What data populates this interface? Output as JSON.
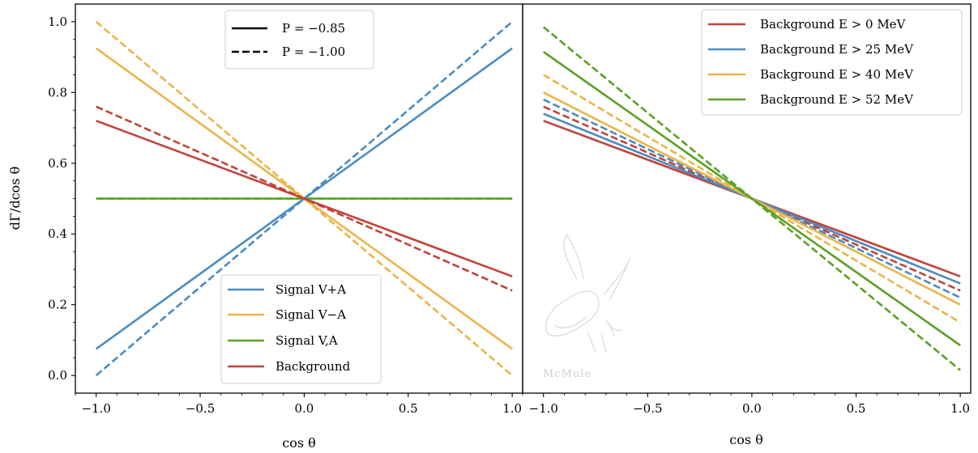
{
  "chart_data": [
    {
      "type": "line",
      "panel": "left",
      "xlabel": "cos θ",
      "ylabel": "dΓ/dcos θ",
      "xlim": [
        -1.1,
        1.05
      ],
      "ylim": [
        -0.05,
        1.05
      ],
      "xticks": [
        -1.0,
        -0.5,
        0.0,
        0.5,
        1.0
      ],
      "xtick_labels": [
        "−1.0",
        "−0.5",
        "0.0",
        "0.5",
        "1.0"
      ],
      "yticks": [
        0.0,
        0.2,
        0.4,
        0.6,
        0.8,
        1.0
      ],
      "ytick_labels": [
        "0.0",
        "0.2",
        "0.4",
        "0.6",
        "0.8",
        "1.0"
      ],
      "grid": false,
      "style_legend": {
        "placement": "top-center",
        "entries": [
          {
            "label": "P = −0.85",
            "dash": "solid"
          },
          {
            "label": "P = −1.00",
            "dash": "dashed"
          }
        ]
      },
      "color_legend": {
        "placement": "bottom-right",
        "entries": [
          {
            "label": "Signal V+A",
            "color": "#4a8cc2"
          },
          {
            "label": "Signal V−A",
            "color": "#ebb44a"
          },
          {
            "label": "Signal V,A",
            "color": "#5aa025"
          },
          {
            "label": "Background",
            "color": "#c0443a"
          }
        ]
      },
      "series": [
        {
          "color": "#4a8cc2",
          "dash": "solid",
          "x": [
            -1,
            1
          ],
          "y": [
            0.075,
            0.925
          ]
        },
        {
          "color": "#4a8cc2",
          "dash": "dashed",
          "x": [
            -1,
            1
          ],
          "y": [
            0.0,
            1.0
          ]
        },
        {
          "color": "#ebb44a",
          "dash": "solid",
          "x": [
            -1,
            1
          ],
          "y": [
            0.925,
            0.075
          ]
        },
        {
          "color": "#ebb44a",
          "dash": "dashed",
          "x": [
            -1,
            1
          ],
          "y": [
            1.0,
            0.0
          ]
        },
        {
          "color": "#5aa025",
          "dash": "solid",
          "x": [
            -1,
            1
          ],
          "y": [
            0.5,
            0.5
          ]
        },
        {
          "color": "#5aa025",
          "dash": "dashed",
          "x": [
            -1,
            1
          ],
          "y": [
            0.5,
            0.5
          ]
        },
        {
          "color": "#c0443a",
          "dash": "solid",
          "x": [
            -1,
            1
          ],
          "y": [
            0.72,
            0.28
          ]
        },
        {
          "color": "#c0443a",
          "dash": "dashed",
          "x": [
            -1,
            1
          ],
          "y": [
            0.76,
            0.24
          ]
        }
      ]
    },
    {
      "type": "line",
      "panel": "right",
      "xlabel": "cos θ",
      "ylabel": "",
      "xlim": [
        -1.1,
        1.05
      ],
      "ylim": [
        -0.05,
        1.05
      ],
      "xticks": [
        -1.0,
        -0.5,
        0.0,
        0.5,
        1.0
      ],
      "xtick_labels": [
        "−1.0",
        "−0.5",
        "0.0",
        "0.5",
        "1.0"
      ],
      "grid": false,
      "color_legend": {
        "placement": "top-right",
        "entries": [
          {
            "label": "Background E > 0 MeV",
            "color": "#c0443a"
          },
          {
            "label": "Background E > 25 MeV",
            "color": "#4a8cc2"
          },
          {
            "label": "Background E > 40 MeV",
            "color": "#ebb44a"
          },
          {
            "label": "Background E > 52 MeV",
            "color": "#5aa025"
          }
        ]
      },
      "series": [
        {
          "color": "#c0443a",
          "dash": "solid",
          "x": [
            -1,
            1
          ],
          "y": [
            0.72,
            0.28
          ]
        },
        {
          "color": "#c0443a",
          "dash": "dashed",
          "x": [
            -1,
            1
          ],
          "y": [
            0.76,
            0.24
          ]
        },
        {
          "color": "#4a8cc2",
          "dash": "solid",
          "x": [
            -1,
            1
          ],
          "y": [
            0.74,
            0.26
          ]
        },
        {
          "color": "#4a8cc2",
          "dash": "dashed",
          "x": [
            -1,
            1
          ],
          "y": [
            0.78,
            0.22
          ]
        },
        {
          "color": "#ebb44a",
          "dash": "solid",
          "x": [
            -1,
            1
          ],
          "y": [
            0.8,
            0.2
          ]
        },
        {
          "color": "#ebb44a",
          "dash": "dashed",
          "x": [
            -1,
            1
          ],
          "y": [
            0.85,
            0.15
          ]
        },
        {
          "color": "#5aa025",
          "dash": "solid",
          "x": [
            -1,
            1
          ],
          "y": [
            0.915,
            0.085
          ]
        },
        {
          "color": "#5aa025",
          "dash": "dashed",
          "x": [
            -1,
            1
          ],
          "y": [
            0.985,
            0.015
          ]
        }
      ],
      "watermark": "McMule"
    }
  ]
}
